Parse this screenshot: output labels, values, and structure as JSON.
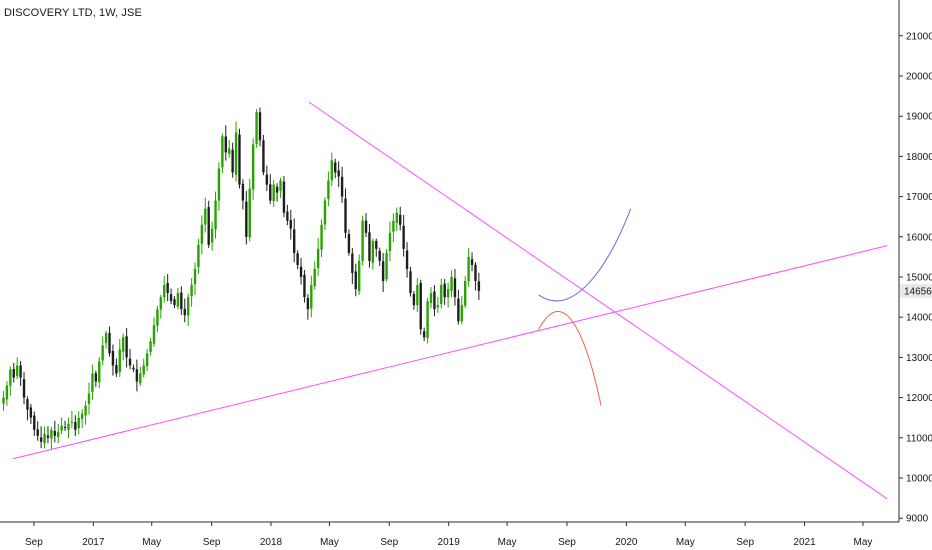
{
  "header": {
    "title": "DISCOVERY LTD, 1W, JSE"
  },
  "colors": {
    "up": "#26a300",
    "down": "#1e1e1e",
    "trendline": "#ff4dff",
    "projection_up": "#6b6bd6",
    "projection_down": "#f0624a",
    "price_tag_bg": "#e8e8e8",
    "axis_line": "#2a2e39"
  },
  "chart_data": {
    "type": "candlestick",
    "symbol": "DISCOVERY LTD",
    "interval": "1W",
    "exchange": "JSE",
    "last_price": 14656,
    "y_ticks": [
      9000,
      10000,
      11000,
      12000,
      13000,
      14000,
      15000,
      16000,
      17000,
      18000,
      19000,
      20000,
      21000
    ],
    "x_ticks": [
      "Sep",
      "2017",
      "May",
      "Sep",
      "2018",
      "May",
      "Sep",
      "2019",
      "May",
      "Sep",
      "2020",
      "May",
      "Sep",
      "2021",
      "May"
    ],
    "x_tick_dates": [
      "2016-09",
      "2017-01",
      "2017-05",
      "2017-09",
      "2018-01",
      "2018-05",
      "2018-09",
      "2019-01",
      "2019-05",
      "2019-09",
      "2020-01",
      "2020-05",
      "2020-09",
      "2021-01",
      "2021-05"
    ],
    "ylim": [
      8700,
      21800
    ],
    "weekly_closes": [
      12000,
      12300,
      12700,
      12500,
      12800,
      12500,
      12000,
      11700,
      11500,
      11200,
      11050,
      10900,
      11100,
      11000,
      11200,
      11050,
      11150,
      11300,
      11250,
      11350,
      11400,
      11200,
      11500,
      11600,
      11800,
      12100,
      12600,
      12400,
      12900,
      13300,
      13600,
      13100,
      12800,
      12600,
      13200,
      13500,
      13000,
      12800,
      12700,
      12400,
      12600,
      12800,
      13100,
      13400,
      13800,
      14200,
      14500,
      14800,
      14600,
      14400,
      14300,
      14600,
      14200,
      14050,
      14500,
      14800,
      15200,
      15800,
      16300,
      16700,
      15800,
      16200,
      16900,
      17700,
      18500,
      18100,
      18200,
      17600,
      18600,
      17300,
      16900,
      16000,
      17200,
      18300,
      19100,
      18400,
      17600,
      17300,
      16900,
      17300,
      17100,
      17400,
      16600,
      16400,
      16200,
      15600,
      15300,
      15000,
      14500,
      14200,
      14800,
      15200,
      15700,
      16300,
      16900,
      17400,
      17900,
      17600,
      17500,
      17000,
      16100,
      15600,
      15100,
      14700,
      15400,
      16400,
      16100,
      15400,
      15900,
      15700,
      15400,
      14900,
      15600,
      16100,
      16400,
      16600,
      16300,
      15700,
      15200,
      14600,
      14300,
      14800,
      13700,
      13500,
      14400,
      14600,
      14200,
      14300,
      14800,
      14500,
      14700,
      15000,
      14500,
      13900,
      14300,
      14900,
      15500,
      15300,
      14900,
      14656
    ],
    "drawings": [
      {
        "type": "trendline",
        "name": "descending resistance",
        "from": [
          "2018-03-20",
          19350
        ],
        "to": [
          "2021-06-20",
          9480
        ]
      },
      {
        "type": "trendline",
        "name": "ascending support",
        "from": [
          "2016-07-20",
          10480
        ],
        "to": [
          "2021-06-20",
          15780
        ]
      },
      {
        "type": "projection",
        "name": "bullish path",
        "points": [
          [
            "2019-07-05",
            14550
          ],
          [
            "2019-09-10",
            14000
          ],
          [
            "2019-11-20",
            15100
          ],
          [
            "2020-01-10",
            16700
          ]
        ]
      },
      {
        "type": "projection",
        "name": "bearish path",
        "points": [
          [
            "2019-07-05",
            13700
          ],
          [
            "2019-08-25",
            14850
          ],
          [
            "2019-10-10",
            13600
          ],
          [
            "2019-11-10",
            11800
          ]
        ]
      }
    ]
  }
}
